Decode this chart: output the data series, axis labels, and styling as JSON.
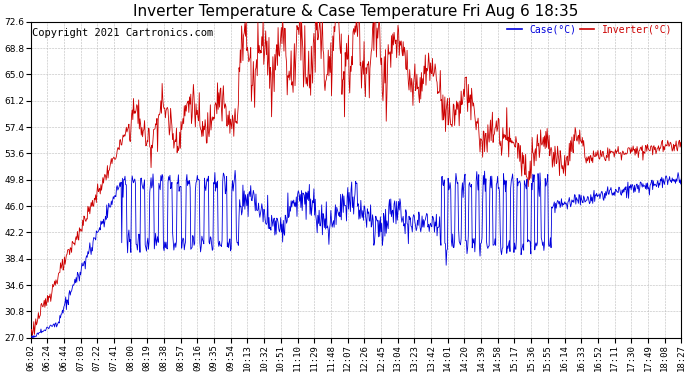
{
  "title": "Inverter Temperature & Case Temperature Fri Aug 6 18:35",
  "copyright": "Copyright 2021 Cartronics.com",
  "legend_case": "Case(°C)",
  "legend_inverter": "Inverter(°C)",
  "ylim": [
    27.0,
    72.6
  ],
  "yticks": [
    27.0,
    30.8,
    34.6,
    38.4,
    42.2,
    46.0,
    49.8,
    53.6,
    57.4,
    61.2,
    65.0,
    68.8,
    72.6
  ],
  "bg_color": "#ffffff",
  "grid_color": "#bbbbbb",
  "case_color": "#0000dd",
  "inverter_color": "#cc0000",
  "title_fontsize": 11,
  "tick_fontsize": 6.5,
  "copyright_fontsize": 7.5,
  "figwidth": 6.9,
  "figheight": 3.75,
  "dpi": 100
}
